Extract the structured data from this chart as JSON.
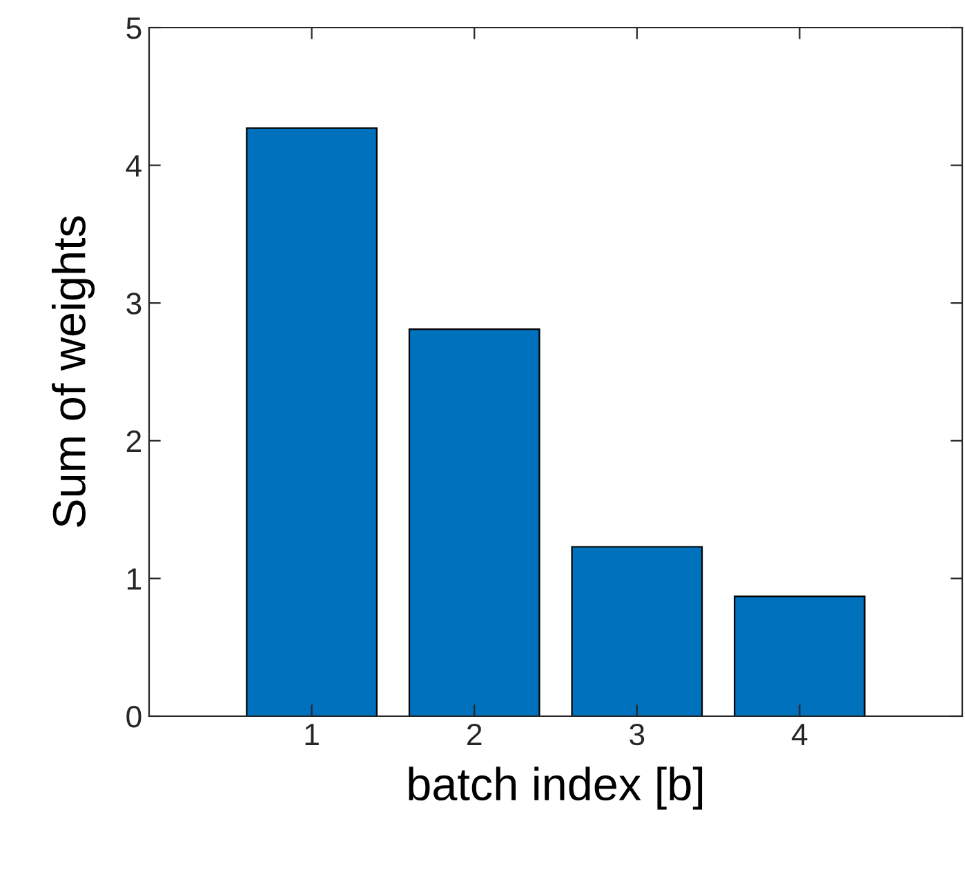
{
  "chart_data": {
    "type": "bar",
    "xlabel": "batch index [b]",
    "ylabel": "Sum of weights",
    "x": [
      1,
      2,
      3,
      4
    ],
    "values": [
      4.27,
      2.81,
      1.23,
      0.87
    ],
    "color": "#0072bd",
    "xlim": [
      0,
      5
    ],
    "xticks": [
      1,
      2,
      3,
      4
    ],
    "ylim": [
      0,
      5
    ],
    "yticks": [
      0,
      1,
      2,
      3,
      4,
      5
    ],
    "grid": false
  }
}
